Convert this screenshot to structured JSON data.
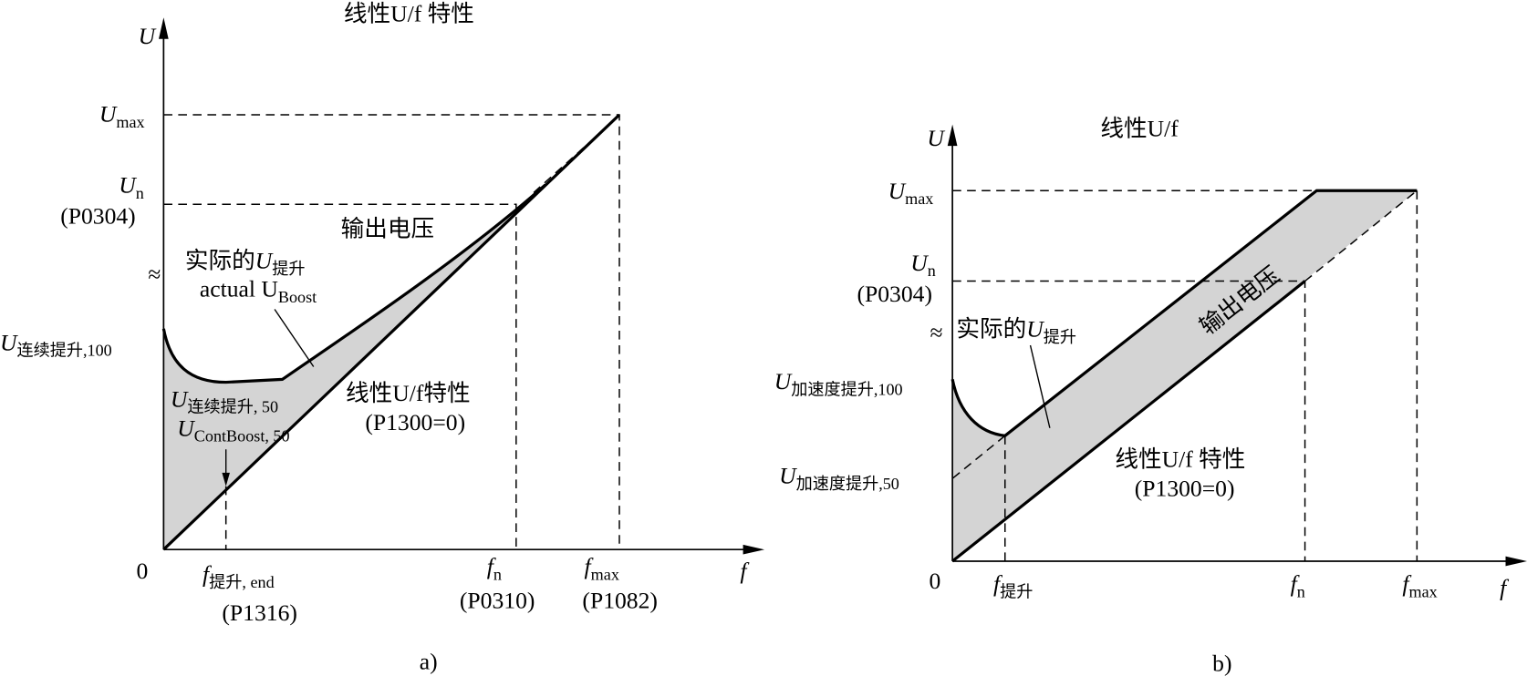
{
  "panel_a": {
    "title": "线性U/f 特性",
    "y_axis": "U",
    "x_axis": "f",
    "origin": "0",
    "u_max": {
      "main": "U",
      "sub": "max"
    },
    "u_n": {
      "main": "U",
      "sub": "n"
    },
    "u_n_param": "(P0304)",
    "approx": "≈",
    "boost_cn": {
      "prefix": "实际的",
      "main": "U",
      "sub": "提升"
    },
    "boost_en": {
      "main": "actual U",
      "sub": "Boost"
    },
    "output_voltage": "输出电压",
    "cont_boost_100": {
      "main": "U",
      "sub": "连续提升,100"
    },
    "cont_boost_50": {
      "main": "U",
      "sub": "连续提升, 50"
    },
    "cont_boost_50_en": {
      "main": "U",
      "sub": "ContBoost",
      "tail": ", 50"
    },
    "linear_label": "线性U/f特性",
    "linear_param": "(P1300=0)",
    "f_boost_end": {
      "main": "f",
      "sub": "提升, end"
    },
    "f_boost_end_param": "(P1316)",
    "f_n": {
      "main": "f",
      "sub": "n"
    },
    "f_n_param": "(P0310)",
    "f_max": {
      "main": "f",
      "sub": "max"
    },
    "f_max_param": "(P1082)",
    "caption": "a)"
  },
  "panel_b": {
    "title": "线性U/f",
    "y_axis": "U",
    "x_axis": "f",
    "origin": "0",
    "u_max": {
      "main": "U",
      "sub": "max"
    },
    "u_n": {
      "main": "U",
      "sub": "n"
    },
    "u_n_param": "(P0304)",
    "approx": "≈",
    "boost_cn": {
      "prefix": "实际的",
      "main": "U",
      "sub": "提升"
    },
    "output_voltage": "输出电压",
    "accel_boost_100": {
      "main": "U",
      "sub": "加速度提升,100"
    },
    "accel_boost_50": {
      "main": "U",
      "sub": "加速度提升,50"
    },
    "linear_label": "线性U/f 特性",
    "linear_param": "(P1300=0)",
    "f_boost": {
      "main": "f",
      "sub": "提升"
    },
    "f_n": {
      "main": "f",
      "sub": "n"
    },
    "f_max": {
      "main": "f",
      "sub": "max"
    },
    "caption": "b)"
  }
}
